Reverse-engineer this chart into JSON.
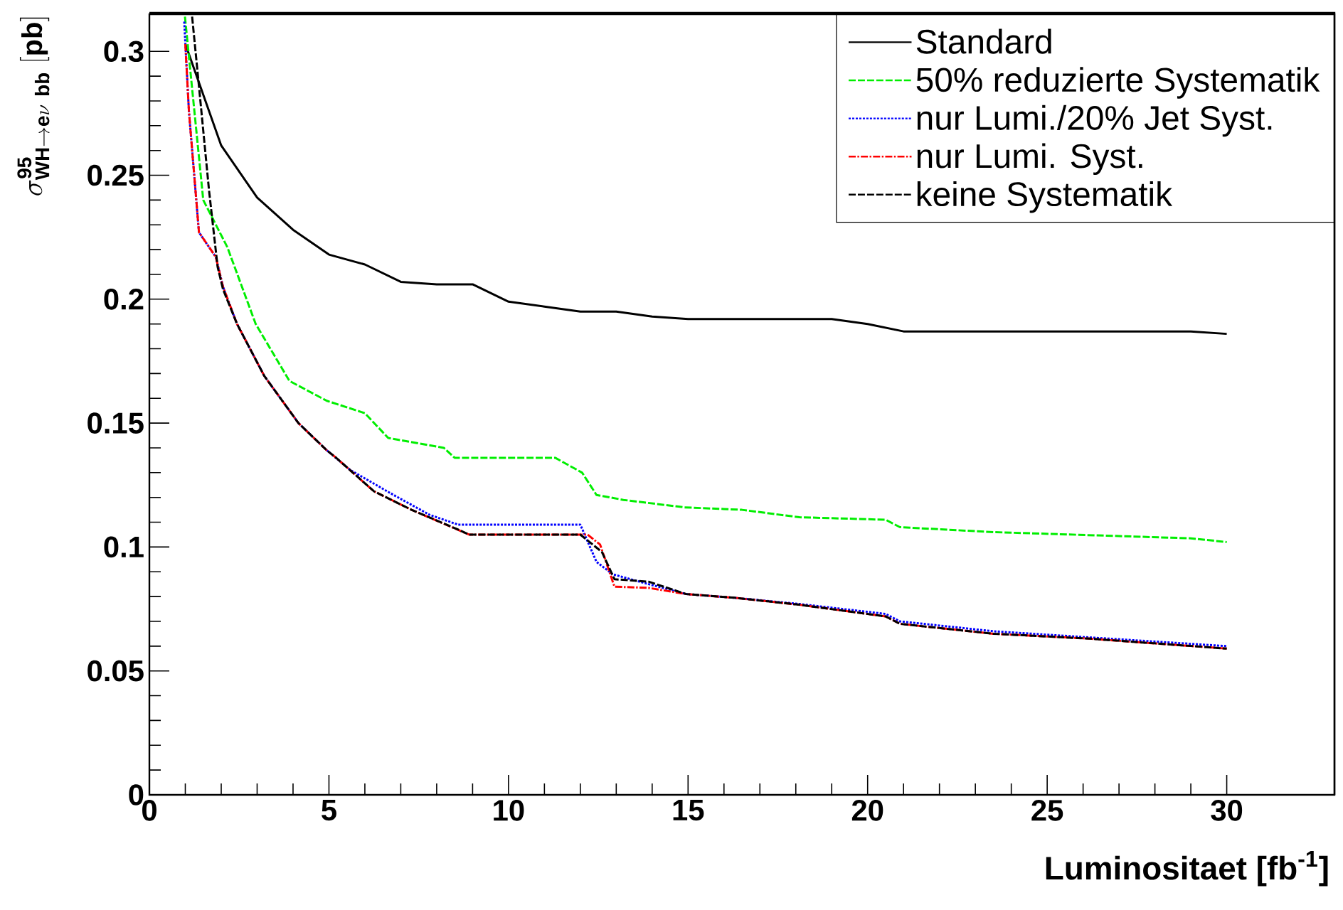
{
  "chart_data": {
    "type": "line",
    "xlabel": "Luminositaet [fb$^{-1}$]",
    "ylabel": "\\sigma^{\\mathbf{95}}_{\\mathbf{WH}\\rightarrow \\mathbf{e}\\nu~\\mathbf{bb}}~\\mathbf{[pb]}",
    "xlim": [
      0,
      33
    ],
    "ylim": [
      0,
      0.315
    ],
    "xticks": [
      0,
      5,
      10,
      15,
      20,
      25,
      30
    ],
    "yticks": [
      0,
      0.05,
      0.1,
      0.15,
      0.2,
      0.25,
      0.3
    ],
    "grid": false,
    "legend": "top right",
    "marker": "none",
    "series": [
      {
        "name": "Standard",
        "color": "#000000",
        "line_style": "solid",
        "x": [
          1,
          2,
          3,
          4,
          5,
          6,
          7,
          8,
          9,
          10,
          11,
          12,
          13,
          14,
          15,
          19,
          20,
          21,
          29,
          30
        ],
        "values": [
          0.303,
          0.262,
          0.241,
          0.228,
          0.218,
          0.214,
          0.207,
          0.206,
          0.206,
          0.199,
          0.197,
          0.195,
          0.195,
          0.193,
          0.192,
          0.192,
          0.19,
          0.187,
          0.187,
          0.186
        ]
      },
      {
        "name": "50% reduzierte Systematik",
        "color": "#00ee00",
        "line_style": "dashed",
        "x": [
          0.99,
          1.5,
          2.17,
          2.96,
          3.9,
          4.94,
          6,
          6.65,
          8.2,
          8.5,
          11.3,
          12.05,
          12.45,
          13.2,
          14.9,
          16.5,
          18.1,
          20.5,
          20.9,
          23.5,
          29,
          30
        ],
        "values": [
          0.314,
          0.24,
          0.221,
          0.19,
          0.167,
          0.159,
          0.154,
          0.144,
          0.14,
          0.136,
          0.136,
          0.13,
          0.121,
          0.119,
          0.116,
          0.115,
          0.112,
          0.111,
          0.108,
          0.106,
          0.1035,
          0.102
        ]
      },
      {
        "name": "nur Lumi./20% Jet Syst.",
        "color": "#0000ff",
        "line_style": "dotted",
        "x": [
          0.97,
          1.1,
          1.38,
          1.85,
          2.05,
          2.44,
          3.2,
          4.15,
          4.94,
          5.6,
          6.8,
          7.8,
          8.6,
          12,
          12.45,
          12.9,
          13.9,
          14.95,
          16.3,
          18.1,
          20.5,
          20.9,
          23.5,
          26.2,
          30
        ],
        "values": [
          0.312,
          0.276,
          0.227,
          0.217,
          0.205,
          0.19,
          0.169,
          0.15,
          0.139,
          0.131,
          0.121,
          0.113,
          0.109,
          0.109,
          0.094,
          0.089,
          0.085,
          0.081,
          0.0795,
          0.077,
          0.073,
          0.07,
          0.066,
          0.0635,
          0.06
        ]
      },
      {
        "name": "nur Lumi. Syst.",
        "color": "#ff0000",
        "line_style": "dashdot",
        "x": [
          1,
          1.1,
          1.38,
          1.85,
          2.05,
          2.44,
          3.2,
          4.15,
          4.94,
          5.2,
          6.25,
          7.3,
          8.9,
          12.2,
          12.55,
          12.95,
          13.9,
          14.95,
          16.3,
          18.1,
          20.5,
          20.9,
          23.5,
          26.2,
          30
        ],
        "values": [
          0.303,
          0.276,
          0.227,
          0.217,
          0.205,
          0.19,
          0.169,
          0.15,
          0.139,
          0.136,
          0.1225,
          0.115,
          0.105,
          0.105,
          0.101,
          0.084,
          0.0835,
          0.081,
          0.0795,
          0.0767,
          0.072,
          0.069,
          0.065,
          0.063,
          0.059
        ]
      },
      {
        "name": "keine Systematik",
        "color": "#000000",
        "line_style": "dashed",
        "x": [
          1.19,
          1.38,
          1.66,
          1.9,
          2.05,
          2.44,
          3.2,
          4.15,
          4.94,
          5.2,
          6.25,
          7.3,
          8.6,
          8.9,
          12,
          12.6,
          12.95,
          13.9,
          14.95,
          16.3,
          18.1,
          20.5,
          20.9,
          23.5,
          26.2,
          30
        ],
        "values": [
          0.314,
          0.286,
          0.244,
          0.213,
          0.204,
          0.19,
          0.169,
          0.15,
          0.139,
          0.136,
          0.1225,
          0.115,
          0.107,
          0.105,
          0.105,
          0.098,
          0.087,
          0.086,
          0.081,
          0.0795,
          0.0767,
          0.072,
          0.069,
          0.065,
          0.063,
          0.059
        ]
      }
    ]
  }
}
